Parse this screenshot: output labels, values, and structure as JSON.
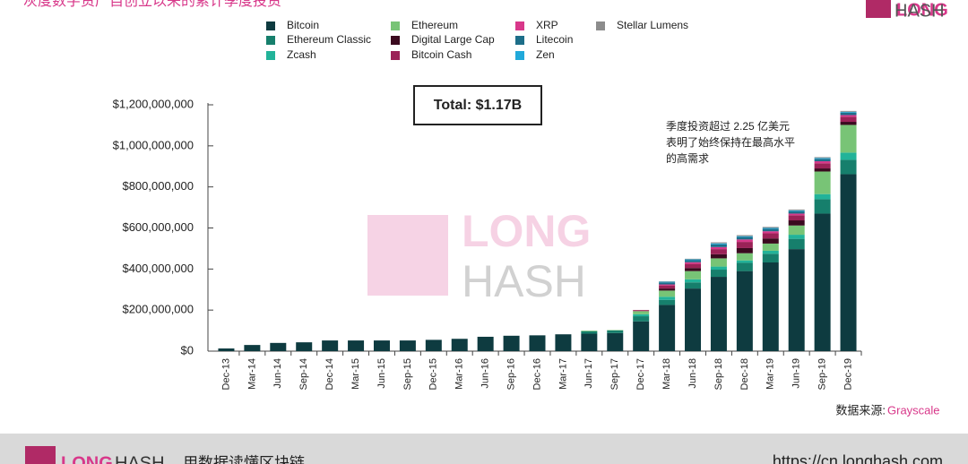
{
  "header_logo": [
    "LONG",
    "HASH"
  ],
  "footer": {
    "logo": [
      "LONG",
      "HASH"
    ],
    "tagline": "用数据读懂区块链",
    "url": "https://cn.longhash.com"
  },
  "chart_data": {
    "type": "stacked_bar",
    "title": "灰度数字资产自创立以来的累计季度投资",
    "total_label": "Total: $1.17B",
    "annotation": [
      "季度投资超过 2.25 亿美元",
      "表明了始终保持在最高水平",
      "的高需求"
    ],
    "source_label": "数据来源:",
    "source_name": "Grayscale",
    "watermark": [
      "LONG",
      "HASH"
    ],
    "categories": [
      "Dec-13",
      "Mar-14",
      "Jun-14",
      "Sep-14",
      "Dec-14",
      "Mar-15",
      "Jun-15",
      "Sep-15",
      "Dec-15",
      "Mar-16",
      "Jun-16",
      "Sep-16",
      "Dec-16",
      "Mar-17",
      "Jun-17",
      "Sep-17",
      "Dec-17",
      "Mar-18",
      "Jun-18",
      "Sep-18",
      "Dec-18",
      "Mar-19",
      "Jun-19",
      "Sep-19",
      "Dec-19"
    ],
    "ylim": [
      0,
      1200000000
    ],
    "yticks": [
      {
        "value": 0,
        "label": "$0"
      },
      {
        "value": 200000000,
        "label": "$200,000,000"
      },
      {
        "value": 400000000,
        "label": "$400,000,000"
      },
      {
        "value": 600000000,
        "label": "$600,000,000"
      },
      {
        "value": 800000000,
        "label": "$800,000,000"
      },
      {
        "value": 1000000000,
        "label": "$1,000,000,000"
      },
      {
        "value": 1200000000,
        "label": "$1,200,000,000"
      }
    ],
    "grid": false,
    "series": [
      {
        "name": "Bitcoin",
        "color": "#0e3b40",
        "values": [
          13000000,
          30000000,
          40000000,
          43000000,
          52000000,
          52000000,
          52000000,
          52000000,
          55000000,
          60000000,
          70000000,
          75000000,
          77000000,
          82000000,
          85000000,
          88000000,
          145000000,
          225000000,
          305000000,
          362000000,
          390000000,
          432000000,
          497000000,
          670000000,
          862000000
        ]
      },
      {
        "name": "Ethereum Classic",
        "color": "#167f6c",
        "values": [
          0,
          0,
          0,
          0,
          0,
          0,
          0,
          0,
          0,
          0,
          0,
          0,
          0,
          0,
          12000000,
          13000000,
          25000000,
          25000000,
          30000000,
          35000000,
          40000000,
          42000000,
          50000000,
          70000000,
          70000000
        ]
      },
      {
        "name": "Zcash",
        "color": "#22b399",
        "values": [
          0,
          0,
          0,
          0,
          0,
          0,
          0,
          0,
          0,
          0,
          0,
          0,
          0,
          0,
          0,
          0,
          10000000,
          15000000,
          15000000,
          15000000,
          12000000,
          15000000,
          20000000,
          25000000,
          35000000
        ]
      },
      {
        "name": "Ethereum",
        "color": "#78c476",
        "values": [
          0,
          0,
          0,
          0,
          0,
          0,
          0,
          0,
          0,
          0,
          0,
          0,
          0,
          0,
          3000000,
          2000000,
          15000000,
          30000000,
          40000000,
          40000000,
          35000000,
          35000000,
          45000000,
          110000000,
          135000000
        ]
      },
      {
        "name": "Digital Large Cap",
        "color": "#3b0a1f",
        "values": [
          0,
          0,
          0,
          0,
          0,
          0,
          0,
          0,
          0,
          0,
          0,
          0,
          0,
          0,
          0,
          0,
          0,
          10000000,
          15000000,
          20000000,
          25000000,
          25000000,
          25000000,
          15000000,
          15000000
        ]
      },
      {
        "name": "Bitcoin Cash",
        "color": "#9b2257",
        "values": [
          0,
          0,
          0,
          0,
          0,
          0,
          0,
          0,
          0,
          0,
          0,
          0,
          0,
          0,
          0,
          0,
          5000000,
          15000000,
          20000000,
          25000000,
          30000000,
          25000000,
          25000000,
          25000000,
          25000000
        ]
      },
      {
        "name": "XRP",
        "color": "#d8388a",
        "values": [
          0,
          0,
          0,
          0,
          0,
          0,
          0,
          0,
          0,
          0,
          0,
          0,
          0,
          0,
          0,
          0,
          0,
          5000000,
          8000000,
          10000000,
          12000000,
          10000000,
          8000000,
          10000000,
          8000000
        ]
      },
      {
        "name": "Litecoin",
        "color": "#1d6e89",
        "values": [
          0,
          0,
          0,
          0,
          0,
          0,
          0,
          0,
          0,
          0,
          0,
          0,
          0,
          0,
          0,
          0,
          0,
          10000000,
          10000000,
          13000000,
          12000000,
          12000000,
          12000000,
          12000000,
          12000000
        ]
      },
      {
        "name": "Zen",
        "color": "#21a9da",
        "values": [
          0,
          0,
          0,
          0,
          0,
          0,
          0,
          0,
          0,
          0,
          0,
          0,
          0,
          0,
          0,
          0,
          0,
          3000000,
          4000000,
          5000000,
          4000000,
          4000000,
          4000000,
          4000000,
          4000000
        ]
      },
      {
        "name": "Stellar Lumens",
        "color": "#8c8c8c",
        "values": [
          0,
          0,
          0,
          0,
          0,
          0,
          0,
          0,
          0,
          0,
          0,
          0,
          0,
          0,
          0,
          0,
          0,
          2000000,
          3000000,
          5000000,
          5000000,
          5000000,
          4000000,
          4000000,
          4000000
        ]
      }
    ]
  }
}
